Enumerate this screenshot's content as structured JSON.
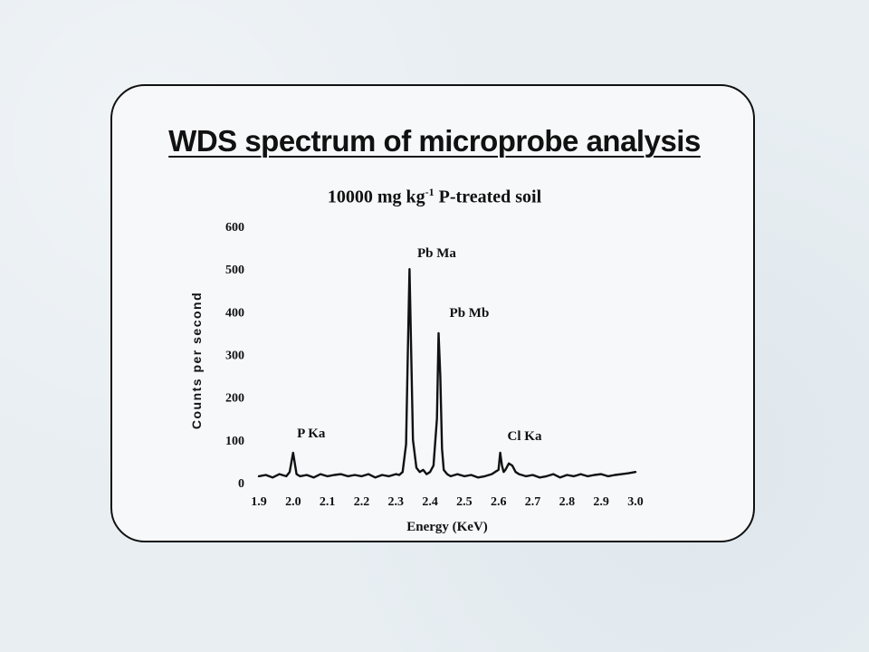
{
  "page": {
    "title": "WDS spectrum of microprobe  analysis",
    "subtitle_main": "10000 mg kg",
    "subtitle_sup": "-1",
    "subtitle_rest": " P-treated soil"
  },
  "chart_data": {
    "type": "line",
    "title": "WDS spectrum of microprobe  analysis",
    "subtitle": "10000 mg kg-1 P-treated soil",
    "xlabel": "Energy (KeV)",
    "ylabel": "Counts per second",
    "xlim": [
      1.9,
      3.0
    ],
    "ylim": [
      0,
      600
    ],
    "xticks": [
      "1.9",
      "2.0",
      "2.1",
      "2.2",
      "2.3",
      "2.4",
      "2.5",
      "2.6",
      "2.7",
      "2.8",
      "2.9",
      "3.0"
    ],
    "yticks": [
      "0",
      "100",
      "200",
      "300",
      "400",
      "500",
      "600"
    ],
    "grid": false,
    "annotations": [
      {
        "text": "P Ka",
        "x": 2.0
      },
      {
        "text": "Pb Ma",
        "x": 2.34
      },
      {
        "text": "Pb Mb",
        "x": 2.43
      },
      {
        "text": "Cl Ka",
        "x": 2.61
      }
    ],
    "series": [
      {
        "x": [
          1.9,
          1.92,
          1.94,
          1.96,
          1.98,
          1.99,
          2.0,
          2.01,
          2.02,
          2.04,
          2.06,
          2.08,
          2.1,
          2.12,
          2.14,
          2.16,
          2.18,
          2.2,
          2.22,
          2.24,
          2.26,
          2.28,
          2.3,
          2.31,
          2.32,
          2.33,
          2.335,
          2.34,
          2.345,
          2.35,
          2.36,
          2.37,
          2.38,
          2.39,
          2.4,
          2.41,
          2.42,
          2.425,
          2.43,
          2.435,
          2.44,
          2.45,
          2.46,
          2.48,
          2.5,
          2.52,
          2.54,
          2.56,
          2.58,
          2.59,
          2.6,
          2.605,
          2.61,
          2.615,
          2.62,
          2.63,
          2.64,
          2.65,
          2.66,
          2.68,
          2.7,
          2.72,
          2.74,
          2.76,
          2.78,
          2.8,
          2.82,
          2.84,
          2.86,
          2.88,
          2.9,
          2.92,
          2.94,
          2.96,
          2.98,
          3.0
        ],
        "values": [
          15,
          18,
          12,
          20,
          15,
          25,
          70,
          20,
          15,
          18,
          12,
          20,
          15,
          18,
          20,
          15,
          18,
          15,
          20,
          12,
          18,
          15,
          20,
          18,
          25,
          90,
          300,
          500,
          300,
          100,
          35,
          25,
          30,
          20,
          25,
          40,
          150,
          350,
          250,
          80,
          30,
          20,
          15,
          20,
          15,
          18,
          12,
          15,
          20,
          25,
          30,
          70,
          40,
          25,
          30,
          45,
          40,
          25,
          20,
          15,
          18,
          12,
          15,
          20,
          12,
          18,
          15,
          20,
          15,
          18,
          20,
          15,
          18,
          20,
          22,
          25
        ]
      }
    ]
  }
}
